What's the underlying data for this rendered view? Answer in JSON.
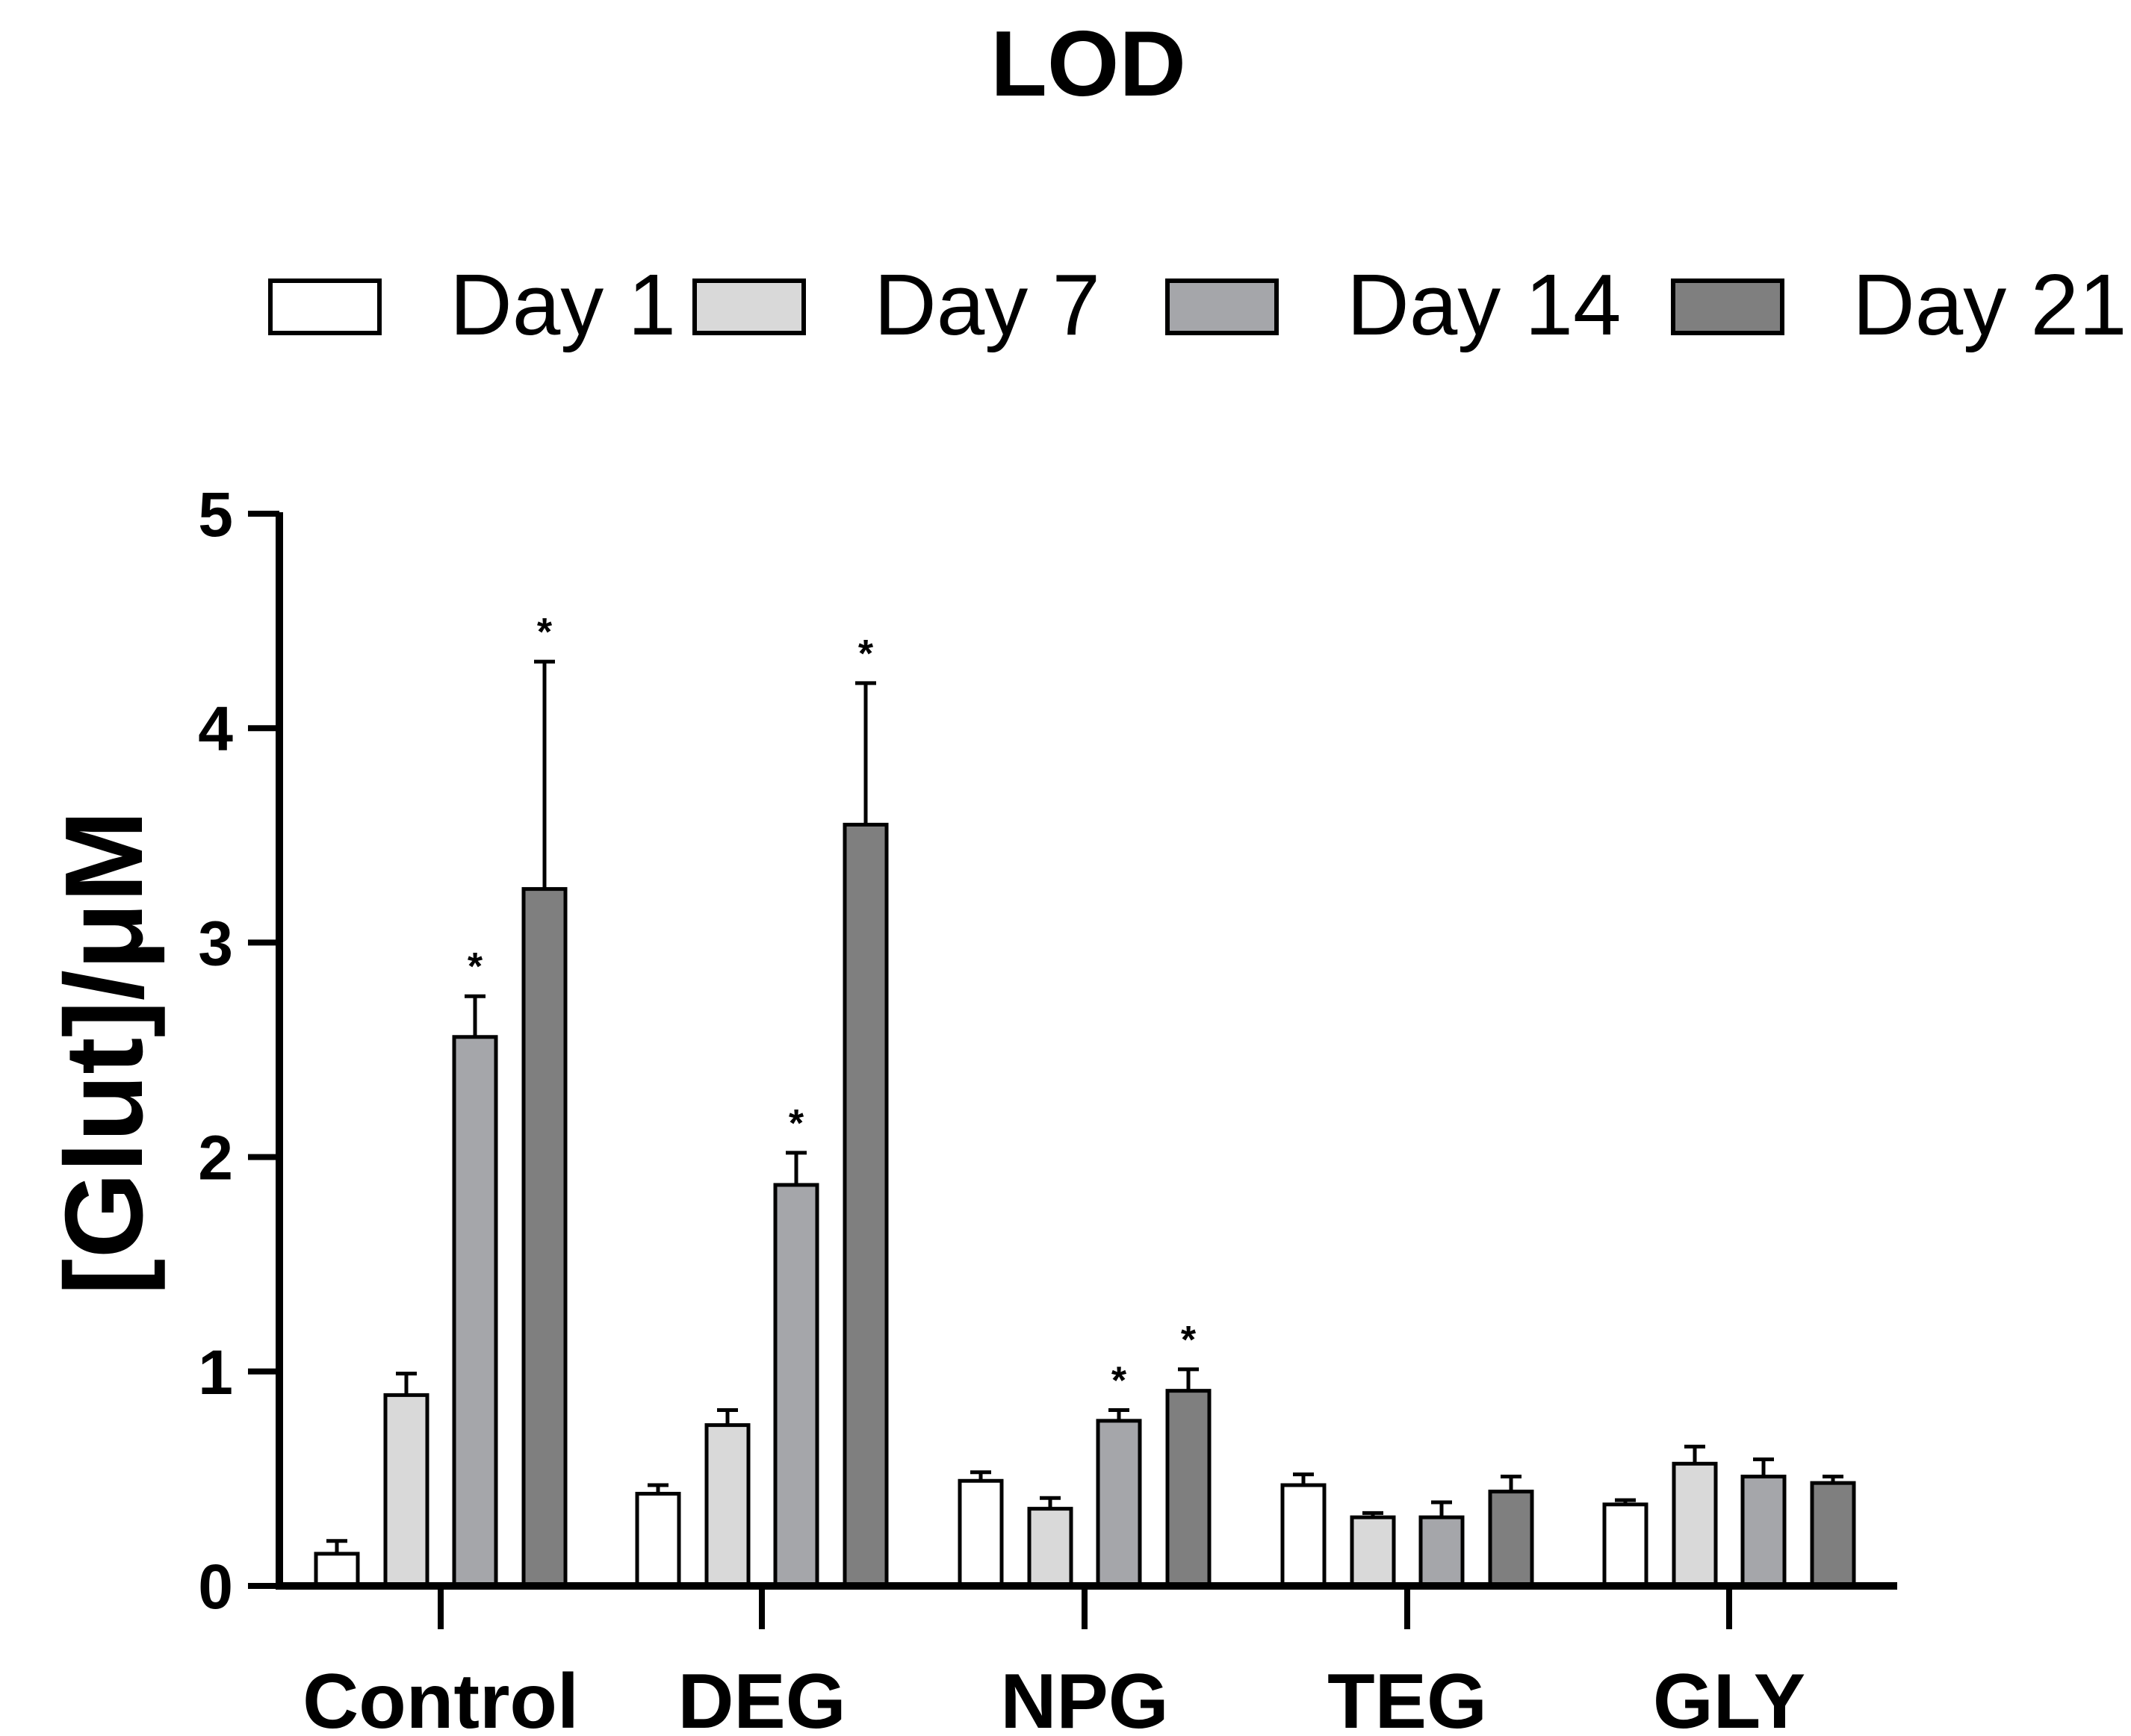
{
  "chart_data": {
    "type": "bar",
    "title": "LOD",
    "xlabel": "",
    "ylabel": "[Glut]/μM",
    "ylim": [
      0,
      5
    ],
    "yticks": [
      "0",
      "1",
      "2",
      "3",
      "4",
      "5"
    ],
    "categories": [
      "Control",
      "DEG",
      "NPG",
      "TEG",
      "GLY"
    ],
    "legend_position": "top",
    "grid": false,
    "series": [
      {
        "name": "Day 1",
        "color": "#ffffff",
        "values": [
          0.15,
          0.43,
          0.49,
          0.47,
          0.38
        ],
        "errors": [
          0.06,
          0.04,
          0.04,
          0.05,
          0.02
        ],
        "significance": [
          "",
          "",
          "",
          "",
          ""
        ]
      },
      {
        "name": "Day 7",
        "color": "#d9d9d9",
        "values": [
          0.89,
          0.75,
          0.36,
          0.32,
          0.57
        ],
        "errors": [
          0.1,
          0.07,
          0.05,
          0.02,
          0.08
        ],
        "significance": [
          "",
          "",
          "",
          "",
          ""
        ]
      },
      {
        "name": "Day 14",
        "color": "#a5a6aa",
        "values": [
          2.56,
          1.87,
          0.77,
          0.32,
          0.51
        ],
        "errors": [
          0.19,
          0.15,
          0.05,
          0.07,
          0.08
        ],
        "significance": [
          "*",
          "*",
          "*",
          "",
          ""
        ]
      },
      {
        "name": "Day 21",
        "color": "#7f7f7f",
        "values": [
          3.25,
          3.55,
          0.91,
          0.44,
          0.48
        ],
        "errors": [
          1.06,
          0.66,
          0.1,
          0.07,
          0.03
        ],
        "significance": [
          "*",
          "*",
          "*",
          "",
          ""
        ]
      }
    ]
  }
}
